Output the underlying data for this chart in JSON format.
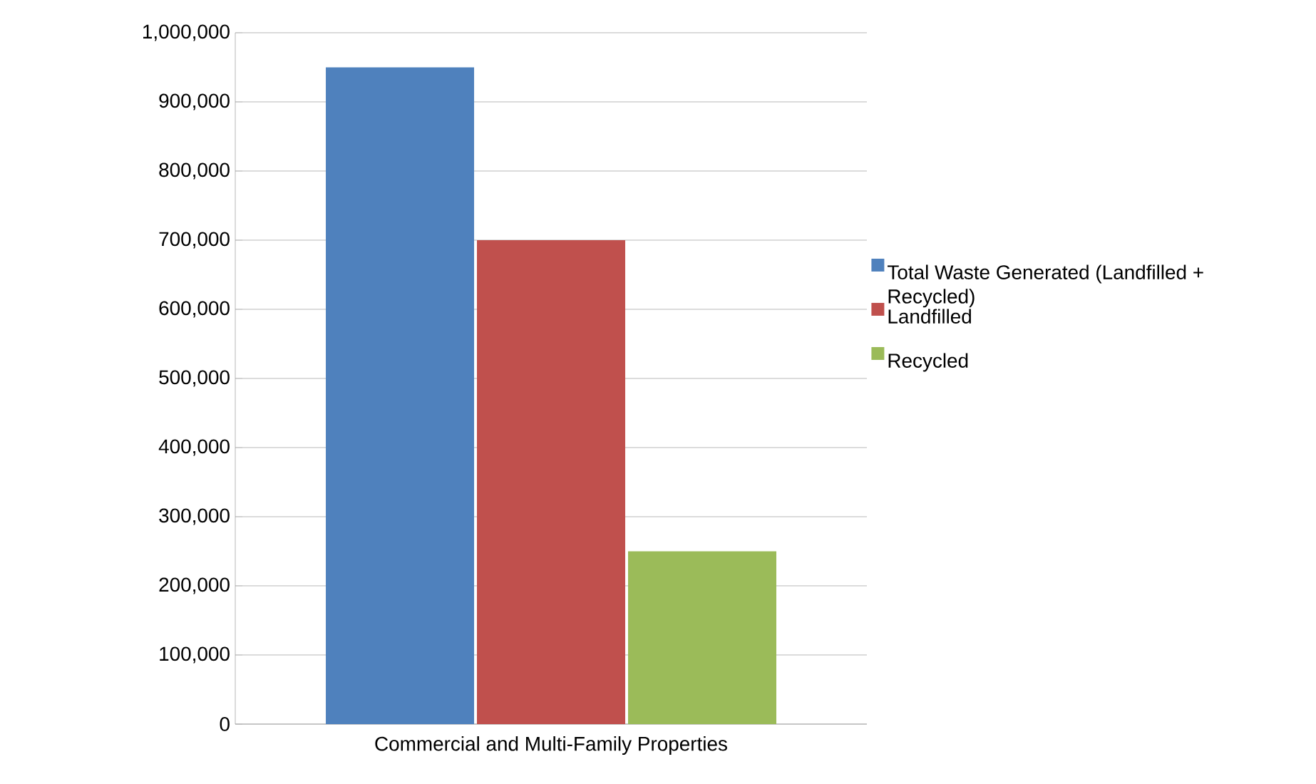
{
  "chart_data": {
    "type": "bar",
    "categories": [
      "Commercial and Multi-Family Properties"
    ],
    "series": [
      {
        "name": "Total Waste Generated (Landfilled + Recycled)",
        "color": "#4f81bd",
        "values": [
          950000
        ]
      },
      {
        "name": "Landfilled",
        "color": "#c0504d",
        "values": [
          700000
        ]
      },
      {
        "name": "Recycled",
        "color": "#9bbb59",
        "values": [
          250000
        ]
      }
    ],
    "ylim": [
      0,
      1000000
    ],
    "yticks": [
      {
        "value": 0,
        "label": "0"
      },
      {
        "value": 100000,
        "label": "100,000"
      },
      {
        "value": 200000,
        "label": "200,000"
      },
      {
        "value": 300000,
        "label": "300,000"
      },
      {
        "value": 400000,
        "label": "400,000"
      },
      {
        "value": 500000,
        "label": "500,000"
      },
      {
        "value": 600000,
        "label": "600,000"
      },
      {
        "value": 700000,
        "label": "700,000"
      },
      {
        "value": 800000,
        "label": "800,000"
      },
      {
        "value": 900000,
        "label": "900,000"
      },
      {
        "value": 1000000,
        "label": "1,000,000"
      }
    ],
    "grid": "y",
    "legend": "right"
  }
}
